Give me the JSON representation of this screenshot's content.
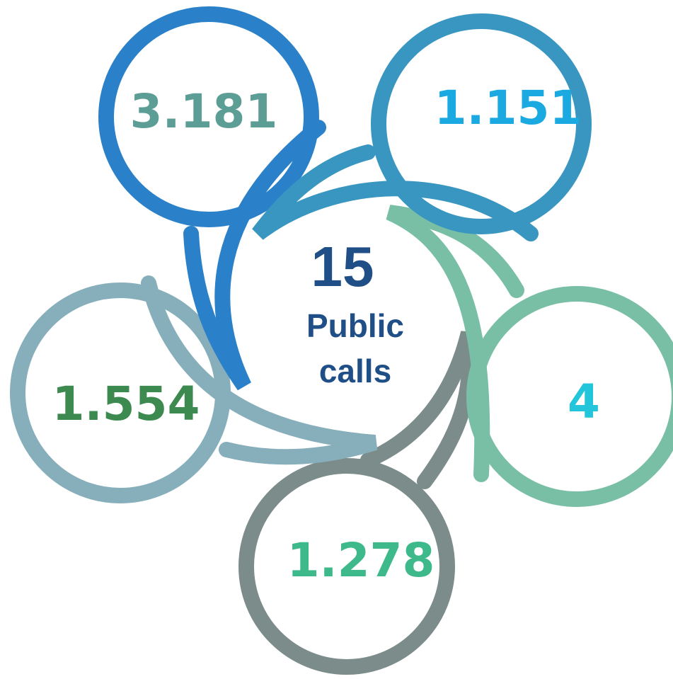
{
  "center": {
    "number": "15",
    "label_lines": [
      "Public",
      "calls"
    ]
  },
  "bubbles": [
    {
      "label": "3.181"
    },
    {
      "label": "1.151"
    },
    {
      "label": "4"
    },
    {
      "label": "1.278"
    },
    {
      "label": "1.554"
    }
  ]
}
